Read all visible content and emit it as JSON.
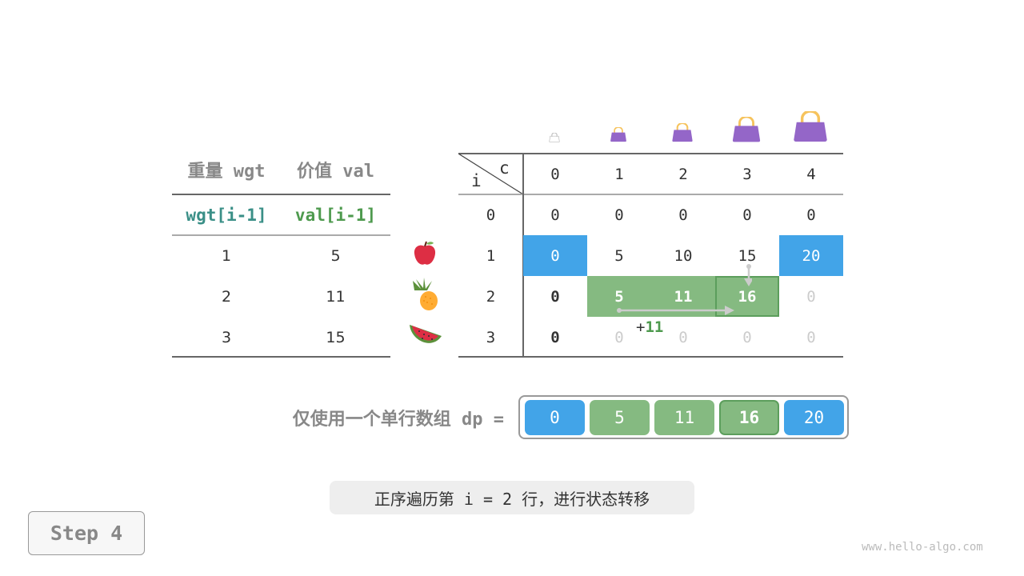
{
  "items_table": {
    "headers": [
      "重量 wgt",
      "价值 val"
    ],
    "subheaders": [
      "wgt[i-1]",
      "val[i-1]"
    ],
    "rows": [
      [
        "1",
        "5"
      ],
      [
        "2",
        "11"
      ],
      [
        "3",
        "15"
      ]
    ],
    "item_icons": [
      "apple-icon",
      "pineapple-icon",
      "watermelon-icon"
    ]
  },
  "dp_table": {
    "corner_row_label": "i",
    "corner_col_label": "c",
    "col_headers": [
      "0",
      "1",
      "2",
      "3",
      "4"
    ],
    "row_headers": [
      "0",
      "1",
      "2",
      "3"
    ],
    "rows": [
      [
        "0",
        "0",
        "0",
        "0",
        "0"
      ],
      [
        "0",
        "5",
        "10",
        "15",
        "20"
      ],
      [
        "0",
        "5",
        "11",
        "16",
        "0"
      ],
      [
        "0",
        "0",
        "0",
        "0",
        "0"
      ]
    ],
    "bag_icons": [
      "bag-icon-0",
      "bag-icon-1",
      "bag-icon-2",
      "bag-icon-3",
      "bag-icon-4"
    ],
    "annotation_plus": "+",
    "annotation_value": "11"
  },
  "dp_array": {
    "label": "仅使用一个单行数组 dp =",
    "values": [
      "0",
      "5",
      "11",
      "16",
      "20"
    ]
  },
  "caption": "正序遍历第 i = 2 行，进行状态转移",
  "step": "Step 4",
  "watermark": "www.hello-algo.com",
  "colors": {
    "blue": "#42a4e8",
    "green": "#85ba81",
    "green_border": "#5c9e5c",
    "teal": "#3a8f87",
    "green_text": "#4e9a4e",
    "bag": "#9466c8",
    "handle": "#f6c35d"
  }
}
